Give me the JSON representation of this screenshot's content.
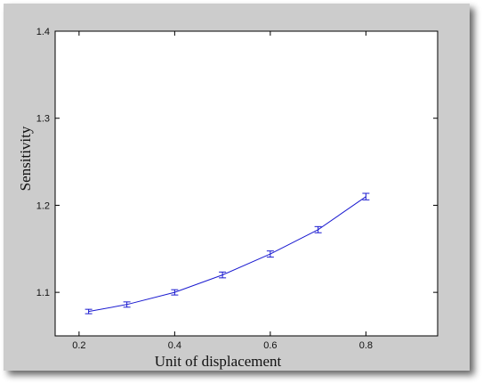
{
  "chart_data": {
    "type": "line",
    "xlabel": "Unit of displacement",
    "ylabel": "Sensitivity",
    "xlim": [
      0.15,
      0.95
    ],
    "ylim": [
      1.05,
      1.4
    ],
    "x_ticks": [
      0.2,
      0.4,
      0.6,
      0.8
    ],
    "x_tick_labels": [
      "0.2",
      "0.4",
      "0.6",
      "0.8"
    ],
    "y_ticks": [
      1.1,
      1.2,
      1.3,
      1.4
    ],
    "y_tick_labels": [
      "1.1",
      "1.2",
      "1.3",
      "1.4"
    ],
    "grid": false,
    "series": [
      {
        "color": "#1a1ad0",
        "x": [
          0.22,
          0.3,
          0.4,
          0.5,
          0.6,
          0.7,
          0.8
        ],
        "y": [
          1.078,
          1.086,
          1.1,
          1.12,
          1.144,
          1.172,
          1.21
        ],
        "error": [
          0.001,
          0.0015,
          0.0015,
          0.0018,
          0.002,
          0.002,
          0.0022
        ]
      }
    ]
  },
  "colors": {
    "frame_background": "#cccccc",
    "plot_background": "#ffffff",
    "axis": "#000000"
  }
}
